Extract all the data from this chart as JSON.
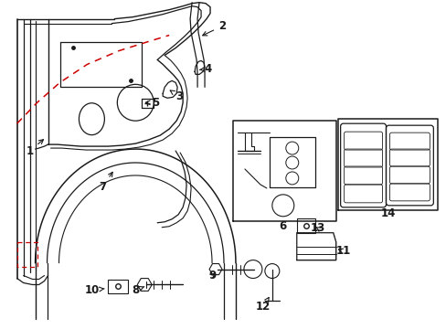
{
  "bg_color": "#ffffff",
  "line_color": "#1a1a1a",
  "red_color": "#cc0000",
  "figsize": [
    4.89,
    3.6
  ],
  "dpi": 100
}
